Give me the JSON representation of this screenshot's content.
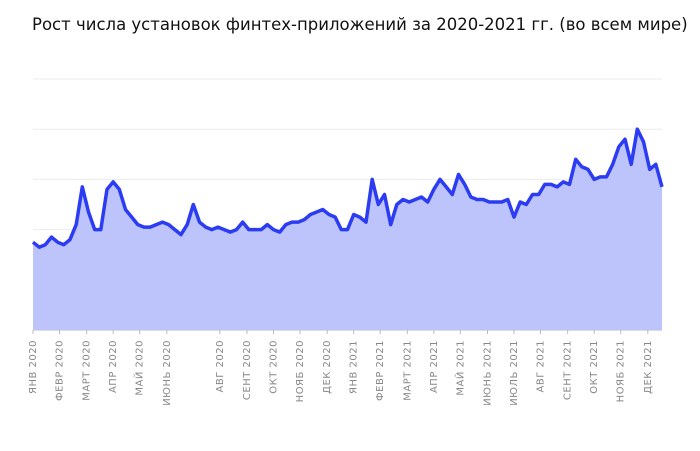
{
  "chart_data": {
    "type": "area",
    "title": "Рост числа установок финтех-приложений за 2020-2021 гг. (во всем мире)",
    "x": [
      0,
      1,
      2,
      3,
      4,
      5,
      6,
      7,
      8,
      9,
      10,
      11,
      12,
      13,
      14,
      15,
      16,
      17,
      18,
      19,
      20,
      21,
      22,
      23,
      24,
      25,
      26,
      27,
      28,
      29,
      30,
      31,
      32,
      33,
      34,
      35,
      36,
      37,
      38,
      39,
      40,
      41,
      42,
      43,
      44,
      45,
      46,
      47,
      48,
      49,
      50,
      51,
      52,
      53,
      54,
      55,
      56,
      57,
      58,
      59,
      60,
      61,
      62,
      63,
      64,
      65,
      66,
      67,
      68,
      69,
      70,
      71,
      72,
      73,
      74,
      75,
      76,
      77,
      78,
      79,
      80,
      81,
      82,
      83,
      84,
      85,
      86,
      87,
      88,
      89,
      90,
      91,
      92,
      93,
      94,
      95,
      96,
      97,
      98,
      99,
      100,
      101,
      102
    ],
    "series": [
      {
        "color": "#2b3cf2",
        "area_color": "#bdc3fb",
        "values": [
          35,
          33,
          34,
          37,
          35,
          34,
          36,
          42,
          57,
          47,
          40,
          40,
          56,
          59,
          56,
          48,
          45,
          42,
          41,
          41,
          42,
          43,
          42,
          40,
          38,
          42,
          50,
          43,
          41,
          40,
          41,
          40,
          39,
          40,
          43,
          40,
          40,
          40,
          42,
          40,
          39,
          42,
          43,
          43,
          44,
          46,
          47,
          48,
          46,
          45,
          40,
          40,
          46,
          45,
          43,
          60,
          50,
          54,
          42,
          50,
          52,
          51,
          52,
          53,
          51,
          56,
          60,
          57,
          54,
          62,
          58,
          53,
          52,
          52,
          51,
          51,
          51,
          52,
          45,
          51,
          50,
          54,
          54,
          58,
          58,
          57,
          59,
          58,
          68,
          65,
          64,
          60,
          61,
          61,
          66,
          73,
          76,
          66,
          80,
          75,
          64,
          66,
          57
        ]
      }
    ],
    "xlim": [
      0,
      102
    ],
    "xticks": [
      {
        "value": 0,
        "label": "ЯНВ 2020"
      },
      {
        "value": 4.3,
        "label": "ФЕВР 2020"
      },
      {
        "value": 8.7,
        "label": "МАРТ 2020"
      },
      {
        "value": 13,
        "label": "АПР 2020"
      },
      {
        "value": 17.3,
        "label": "МАЙ 2020"
      },
      {
        "value": 21.7,
        "label": "ИЮНЬ 2020"
      },
      {
        "value": 30.3,
        "label": "АВГ 2020"
      },
      {
        "value": 34.7,
        "label": "СЕНТ 2020"
      },
      {
        "value": 39,
        "label": "ОКТ 2020"
      },
      {
        "value": 43.3,
        "label": "НОЯБ 2020"
      },
      {
        "value": 47.7,
        "label": "ДЕК 2020"
      },
      {
        "value": 52,
        "label": "ЯНВ 2021"
      },
      {
        "value": 56.3,
        "label": "ФЕВР 2021"
      },
      {
        "value": 60.7,
        "label": "МАРТ 2021"
      },
      {
        "value": 65,
        "label": "АПР 2021"
      },
      {
        "value": 69.3,
        "label": "МАЙ 2021"
      },
      {
        "value": 73.7,
        "label": "ИЮНЬ 2021"
      },
      {
        "value": 78,
        "label": "ИЮЛЬ 2021"
      },
      {
        "value": 82.3,
        "label": "АВГ 2021"
      },
      {
        "value": 86.7,
        "label": "СЕНТ 2021"
      },
      {
        "value": 91,
        "label": "ОКТ 2021"
      },
      {
        "value": 95.3,
        "label": "НОЯБ 2021"
      },
      {
        "value": 99.7,
        "label": "ДЕК 2021"
      }
    ],
    "ylim": [
      0,
      100
    ],
    "yticks": [
      0,
      20,
      40,
      60,
      80,
      100
    ],
    "grid": true
  }
}
